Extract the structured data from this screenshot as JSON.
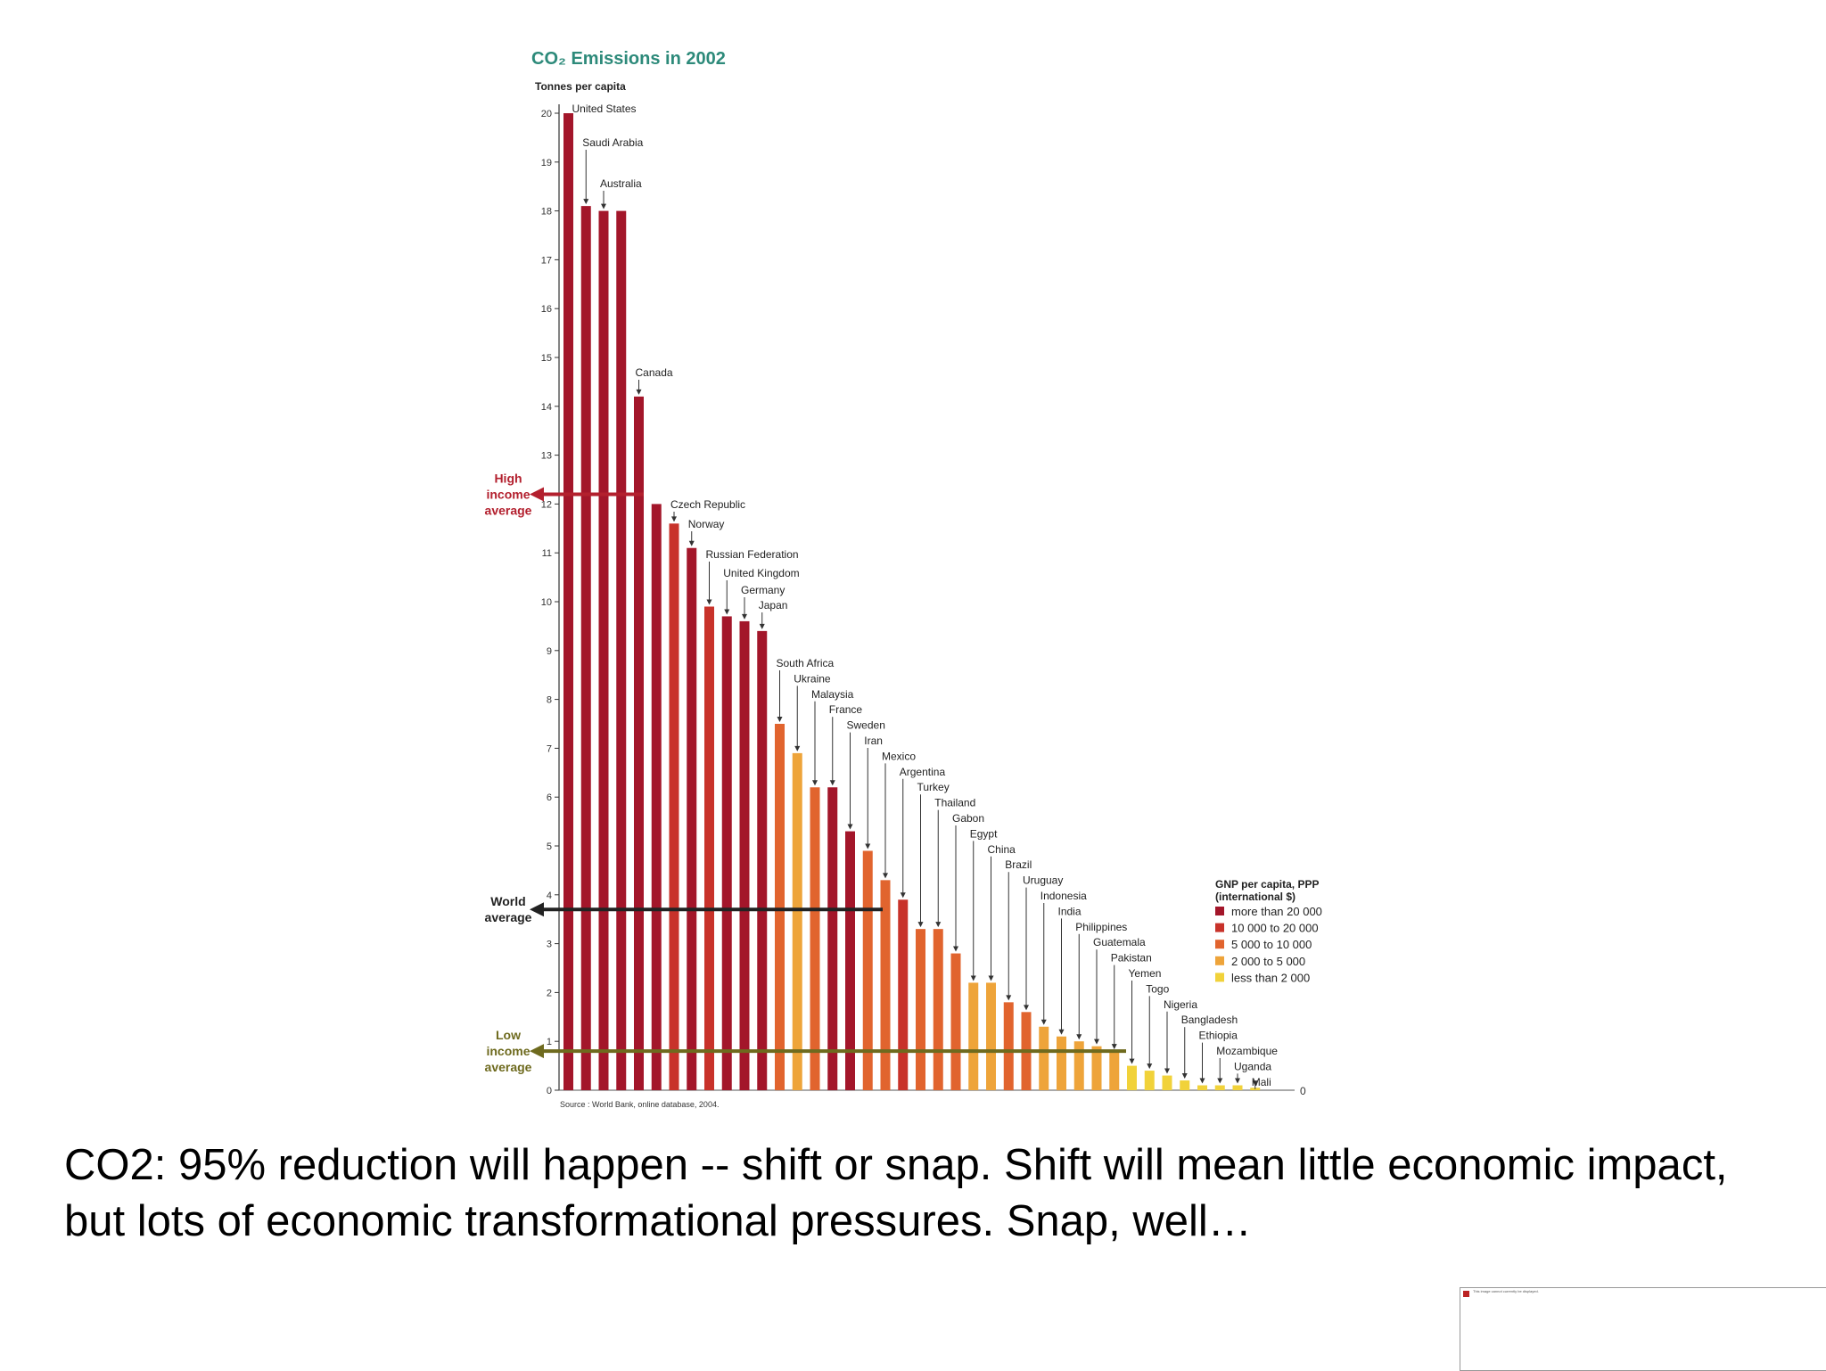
{
  "chart_data": {
    "type": "bar",
    "title": "CO₂ Emissions in 2002",
    "ylabel": "Tonnes per capita",
    "ylim": [
      0,
      20
    ],
    "y_ticks": [
      0,
      1,
      2,
      3,
      4,
      5,
      6,
      7,
      8,
      9,
      10,
      11,
      12,
      13,
      14,
      15,
      16,
      17,
      18,
      19,
      20
    ],
    "right_zero_label": "0",
    "grid": false,
    "categories": [
      "United States",
      "Saudi Arabia",
      "Australia",
      "",
      "Canada",
      "",
      "Czech Republic",
      "Norway",
      "Russian Federation",
      "United Kingdom",
      "Germany",
      "Japan",
      "South Africa",
      "Ukraine",
      "Malaysia",
      "France",
      "Sweden",
      "Iran",
      "Mexico",
      "Argentina",
      "Turkey",
      "Thailand",
      "Gabon",
      "Egypt",
      "China",
      "Brazil",
      "Uruguay",
      "Indonesia",
      "India",
      "Philippines",
      "Guatemala",
      "Pakistan",
      "Yemen",
      "Togo",
      "Nigeria",
      "Bangladesh",
      "Ethiopia",
      "Mozambique",
      "Uganda",
      "Mali"
    ],
    "values": [
      20.0,
      18.1,
      18.0,
      18.0,
      14.2,
      12.0,
      11.6,
      11.1,
      9.9,
      9.7,
      9.6,
      9.4,
      7.5,
      6.9,
      6.2,
      6.2,
      5.3,
      4.9,
      4.3,
      3.9,
      3.3,
      3.3,
      2.8,
      2.2,
      2.2,
      1.8,
      1.6,
      1.3,
      1.1,
      1.0,
      0.9,
      0.8,
      0.5,
      0.4,
      0.3,
      0.2,
      0.1,
      0.1,
      0.1,
      0.05
    ],
    "income_class": [
      "high",
      "high",
      "high",
      "high",
      "high",
      "high",
      "upper_mid",
      "high",
      "upper_mid",
      "high",
      "high",
      "high",
      "mid",
      "low_mid",
      "mid",
      "high",
      "high",
      "mid",
      "mid",
      "upper_mid",
      "mid",
      "mid",
      "mid",
      "low_mid",
      "low_mid",
      "mid",
      "mid",
      "low_mid",
      "low_mid",
      "low_mid",
      "low_mid",
      "low_mid",
      "low",
      "low",
      "low",
      "low",
      "low",
      "low",
      "low",
      "low"
    ],
    "legend": {
      "title": "GNP per capita, PPP (international $)",
      "position": "right",
      "entries": [
        {
          "key": "high",
          "label": "more than 20 000",
          "color": "#a3162a"
        },
        {
          "key": "upper_mid",
          "label": "10 000 to 20 000",
          "color": "#c8322a"
        },
        {
          "key": "mid",
          "label": "5 000 to 10 000",
          "color": "#e1642e"
        },
        {
          "key": "low_mid",
          "label": "2 000 to 5 000",
          "color": "#eea43a"
        },
        {
          "key": "low",
          "label": "less than 2 000",
          "color": "#f1d23a"
        }
      ]
    },
    "reference_lines": [
      {
        "name": "high_income_average",
        "label": "High income average",
        "value": 12.2,
        "color": "#b3202e"
      },
      {
        "name": "world_average",
        "label": "World average",
        "value": 3.7,
        "color": "#222222"
      },
      {
        "name": "low_income_average",
        "label": "Low income average",
        "value": 0.8,
        "color": "#6e6a1e"
      }
    ],
    "source": "Source : World Bank, online database, 2004."
  },
  "caption": "CO2: 95% reduction will happen -- shift or snap. Shift will mean little economic impact, but lots of economic transformational pressures. Snap, well…",
  "thumbnail_text": "This image cannot currently be displayed."
}
